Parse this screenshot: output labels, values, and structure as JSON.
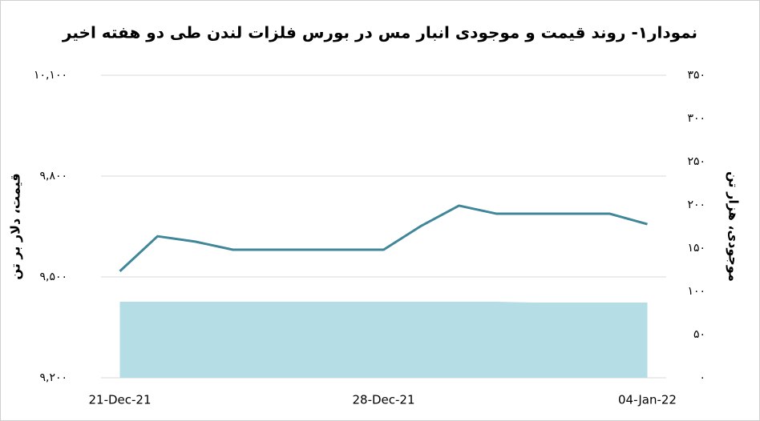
{
  "chart_data": {
    "type": "line",
    "title": "نمودار۱- روند قیمت و موجودی انبار مس در بورس فلزات لندن طی دو هفته اخیر",
    "y_label": "قیمت، دلار بر تن",
    "y2_label": "موجودی، هزار تن",
    "categories": [
      "21-Dec-21",
      null,
      null,
      null,
      null,
      null,
      null,
      "28-Dec-21",
      null,
      null,
      null,
      null,
      null,
      null,
      "04-Jan-22"
    ],
    "series": [
      {
        "name": "موجودی",
        "type": "area",
        "axis": "y2",
        "color": "#b5dde5",
        "values": [
          88,
          88,
          88,
          88,
          88,
          88,
          88,
          88,
          88,
          88,
          88,
          87,
          87,
          87,
          87
        ]
      },
      {
        "name": "قیمت",
        "type": "line",
        "color": "#3f8799",
        "values": [
          9517,
          9621,
          9605,
          9581,
          9581,
          9581,
          9581,
          9581,
          9652,
          9712,
          9688,
          9688,
          9688,
          9688,
          9657
        ]
      }
    ],
    "ylim": [
      9200,
      10100
    ],
    "yticks": [
      {
        "value": 9200,
        "label": "۹,۲۰۰"
      },
      {
        "value": 9500,
        "label": "۹,۵۰۰"
      },
      {
        "value": 9800,
        "label": "۹,۸۰۰"
      },
      {
        "value": 10100,
        "label": "۱۰,۱۰۰"
      }
    ],
    "y2lim": [
      0,
      350
    ],
    "y2ticks": [
      {
        "value": 0,
        "label": "۰"
      },
      {
        "value": 50,
        "label": "۵۰"
      },
      {
        "value": 100,
        "label": "۱۰۰"
      },
      {
        "value": 150,
        "label": "۱۵۰"
      },
      {
        "value": 200,
        "label": "۲۰۰"
      },
      {
        "value": 250,
        "label": "۲۵۰"
      },
      {
        "value": 300,
        "label": "۳۰۰"
      },
      {
        "value": 350,
        "label": "۳۵۰"
      }
    ],
    "grid": true
  }
}
